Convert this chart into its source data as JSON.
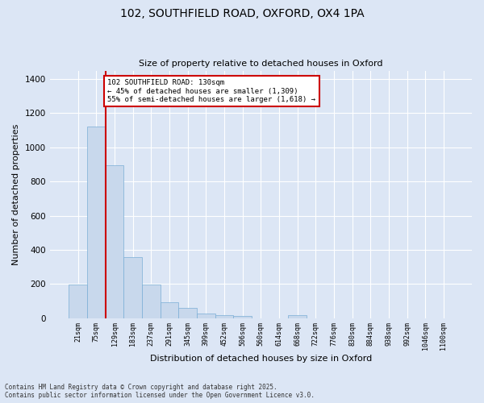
{
  "title_line1": "102, SOUTHFIELD ROAD, OXFORD, OX4 1PA",
  "title_line2": "Size of property relative to detached houses in Oxford",
  "xlabel": "Distribution of detached houses by size in Oxford",
  "ylabel": "Number of detached properties",
  "categories": [
    "21sqm",
    "75sqm",
    "129sqm",
    "183sqm",
    "237sqm",
    "291sqm",
    "345sqm",
    "399sqm",
    "452sqm",
    "506sqm",
    "560sqm",
    "614sqm",
    "668sqm",
    "722sqm",
    "776sqm",
    "830sqm",
    "884sqm",
    "938sqm",
    "992sqm",
    "1046sqm",
    "1100sqm"
  ],
  "values": [
    195,
    1120,
    895,
    355,
    198,
    92,
    60,
    25,
    18,
    13,
    0,
    0,
    15,
    0,
    0,
    0,
    0,
    0,
    0,
    0,
    0
  ],
  "bar_color": "#c8d8ec",
  "bar_edge_color": "#7aaed6",
  "background_color": "#dce6f5",
  "grid_color": "#ffffff",
  "vline_color": "#cc0000",
  "annotation_text": "102 SOUTHFIELD ROAD: 130sqm\n← 45% of detached houses are smaller (1,309)\n55% of semi-detached houses are larger (1,618) →",
  "annotation_box_color": "#cc0000",
  "ylim": [
    0,
    1450
  ],
  "yticks": [
    0,
    200,
    400,
    600,
    800,
    1000,
    1200,
    1400
  ],
  "footer_line1": "Contains HM Land Registry data © Crown copyright and database right 2025.",
  "footer_line2": "Contains public sector information licensed under the Open Government Licence v3.0."
}
